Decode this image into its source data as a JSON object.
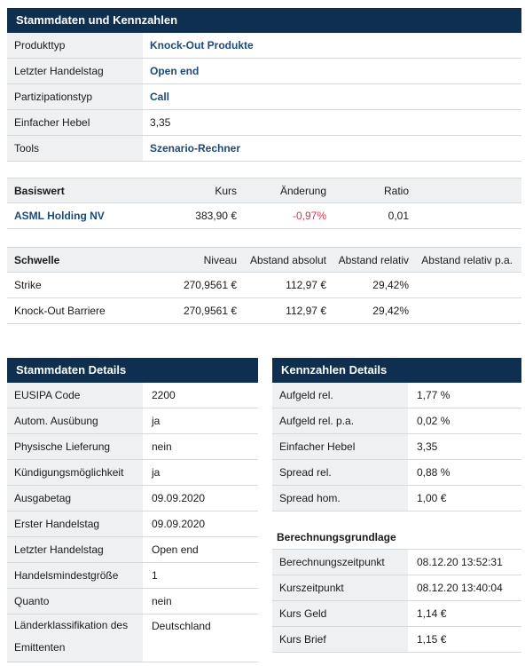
{
  "stammdaten_kennzahlen": {
    "title": "Stammdaten und Kennzahlen",
    "rows": [
      {
        "label": "Produkttyp",
        "value": "Knock-Out Produkte"
      },
      {
        "label": "Letzter Handelstag",
        "value": "Open end"
      },
      {
        "label": "Partizipationstyp",
        "value": "Call"
      },
      {
        "label": "Einfacher Hebel",
        "value": "3,35"
      },
      {
        "label": "Tools",
        "value": "Szenario-Rechner"
      }
    ]
  },
  "basiswert": {
    "headers": [
      "Basiswert",
      "Kurs",
      "Änderung",
      "Ratio"
    ],
    "row": {
      "name": "ASML Holding NV",
      "kurs": "383,90 €",
      "aenderung": "-0,97%",
      "ratio": "0,01"
    }
  },
  "schwelle": {
    "headers": [
      "Schwelle",
      "Niveau",
      "Abstand absolut",
      "Abstand relativ",
      "Abstand relativ p.a."
    ],
    "rows": [
      {
        "name": "Strike",
        "niveau": "270,9561 €",
        "abs": "112,97 €",
        "rel": "29,42%",
        "rel_pa": ""
      },
      {
        "name": "Knock-Out Barriere",
        "niveau": "270,9561 €",
        "abs": "112,97 €",
        "rel": "29,42%",
        "rel_pa": ""
      }
    ]
  },
  "stammdaten_details": {
    "title": "Stammdaten Details",
    "rows": [
      {
        "label": "EUSIPA Code",
        "value": "2200"
      },
      {
        "label": "Autom. Ausübung",
        "value": "ja"
      },
      {
        "label": "Physische Lieferung",
        "value": "nein"
      },
      {
        "label": "Kündigungsmöglichkeit",
        "value": "ja"
      },
      {
        "label": "Ausgabetag",
        "value": "09.09.2020"
      },
      {
        "label": "Erster Handelstag",
        "value": "09.09.2020"
      },
      {
        "label": "Letzter Handelstag",
        "value": "Open end"
      },
      {
        "label": "Handelsmindestgröße",
        "value": "1"
      },
      {
        "label": "Quanto",
        "value": "nein"
      },
      {
        "label": "Länderklassifikation des Emittenten",
        "value": "Deutschland"
      }
    ]
  },
  "kennzahlen_details": {
    "title": "Kennzahlen Details",
    "rows": [
      {
        "label": "Aufgeld rel.",
        "value": "1,77 %"
      },
      {
        "label": "Aufgeld rel. p.a.",
        "value": "0,02 %"
      },
      {
        "label": "Einfacher Hebel",
        "value": "3,35"
      },
      {
        "label": "Spread rel.",
        "value": "0,88 %"
      },
      {
        "label": "Spread hom.",
        "value": "1,00 €"
      }
    ]
  },
  "berechnungsgrundlage": {
    "title": "Berechnungsgrundlage",
    "rows": [
      {
        "label": "Berechnungszeitpunkt",
        "value": "08.12.20 13:52:31"
      },
      {
        "label": "Kurszeitpunkt",
        "value": "08.12.20 13:40:04"
      },
      {
        "label": "Kurs Geld",
        "value": "1,14 €"
      },
      {
        "label": "Kurs Brief",
        "value": "1,15 €"
      }
    ]
  },
  "colors": {
    "header_bg": "#0e2f50",
    "label_bg": "#eef0f2",
    "link": "#1d4a78",
    "negative": "#d6334c"
  }
}
